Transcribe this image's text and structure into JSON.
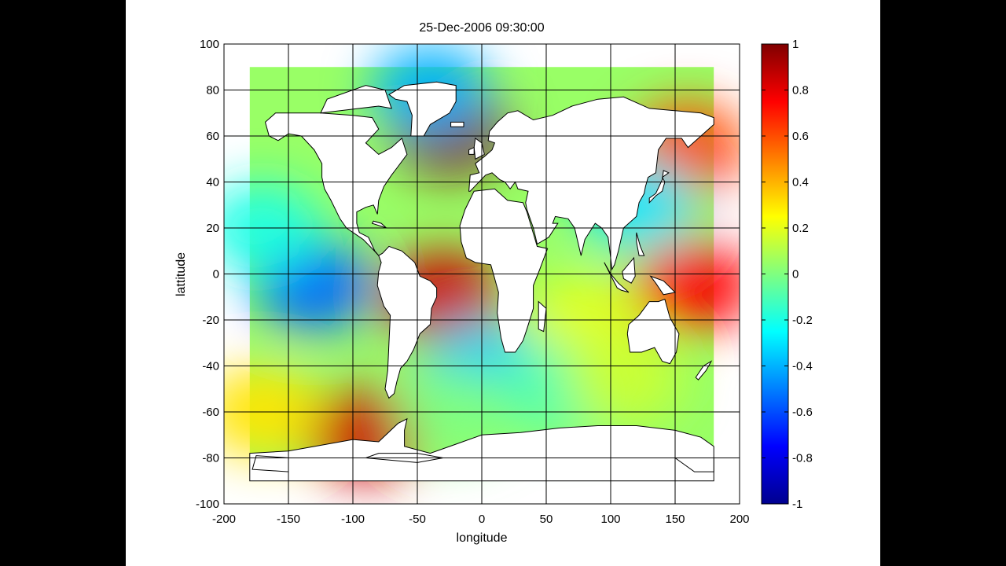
{
  "chart_data": {
    "type": "heatmap",
    "title": "25-Dec-2006 09:30:00",
    "xlabel": "longitude",
    "ylabel": "lattitude",
    "xlim": [
      -200,
      200
    ],
    "ylim": [
      -100,
      100
    ],
    "x_ticks": [
      -200,
      -150,
      -100,
      -50,
      0,
      50,
      100,
      150,
      200
    ],
    "y_ticks": [
      100,
      80,
      60,
      40,
      20,
      0,
      -20,
      -40,
      -60,
      -80,
      -100
    ],
    "grid": true,
    "data_extent": {
      "lon": [
        -180,
        180
      ],
      "lat": [
        -85,
        90
      ]
    },
    "colormap": "jet",
    "colorbar": {
      "range": [
        -1,
        1
      ],
      "ticks": [
        1,
        0.8,
        0.6,
        0.4,
        0.2,
        0,
        -0.2,
        -0.4,
        -0.6,
        -0.8,
        -1
      ],
      "tick_labels": [
        "1",
        "0.8",
        "0.6",
        "0.4",
        "0.2",
        "0",
        "-0.2",
        "-0.4",
        "-0.6",
        "-0.8",
        "-1"
      ],
      "placement": "right"
    },
    "field_features": [
      {
        "lon": -30,
        "lat": -10,
        "value": 0.85
      },
      {
        "lon": -25,
        "lat": 63,
        "value": 1.0
      },
      {
        "lon": -130,
        "lat": -5,
        "value": -0.55
      },
      {
        "lon": -170,
        "lat": 20,
        "value": -0.2
      },
      {
        "lon": 165,
        "lat": -5,
        "value": 0.75
      },
      {
        "lon": 160,
        "lat": 55,
        "value": 0.6
      },
      {
        "lon": -90,
        "lat": -70,
        "value": 0.85
      },
      {
        "lon": -170,
        "lat": -60,
        "value": 0.3
      },
      {
        "lon": -40,
        "lat": 80,
        "value": -0.4
      },
      {
        "lon": 0,
        "lat": -40,
        "value": -0.35
      },
      {
        "lon": 80,
        "lat": -20,
        "value": 0.2
      },
      {
        "lon": 60,
        "lat": -50,
        "value": -0.1
      },
      {
        "lon": 110,
        "lat": -45,
        "value": 0.15
      },
      {
        "lon": -20,
        "lat": -60,
        "value": 0.0
      },
      {
        "lon": 120,
        "lat": 30,
        "value": -0.3
      }
    ]
  }
}
